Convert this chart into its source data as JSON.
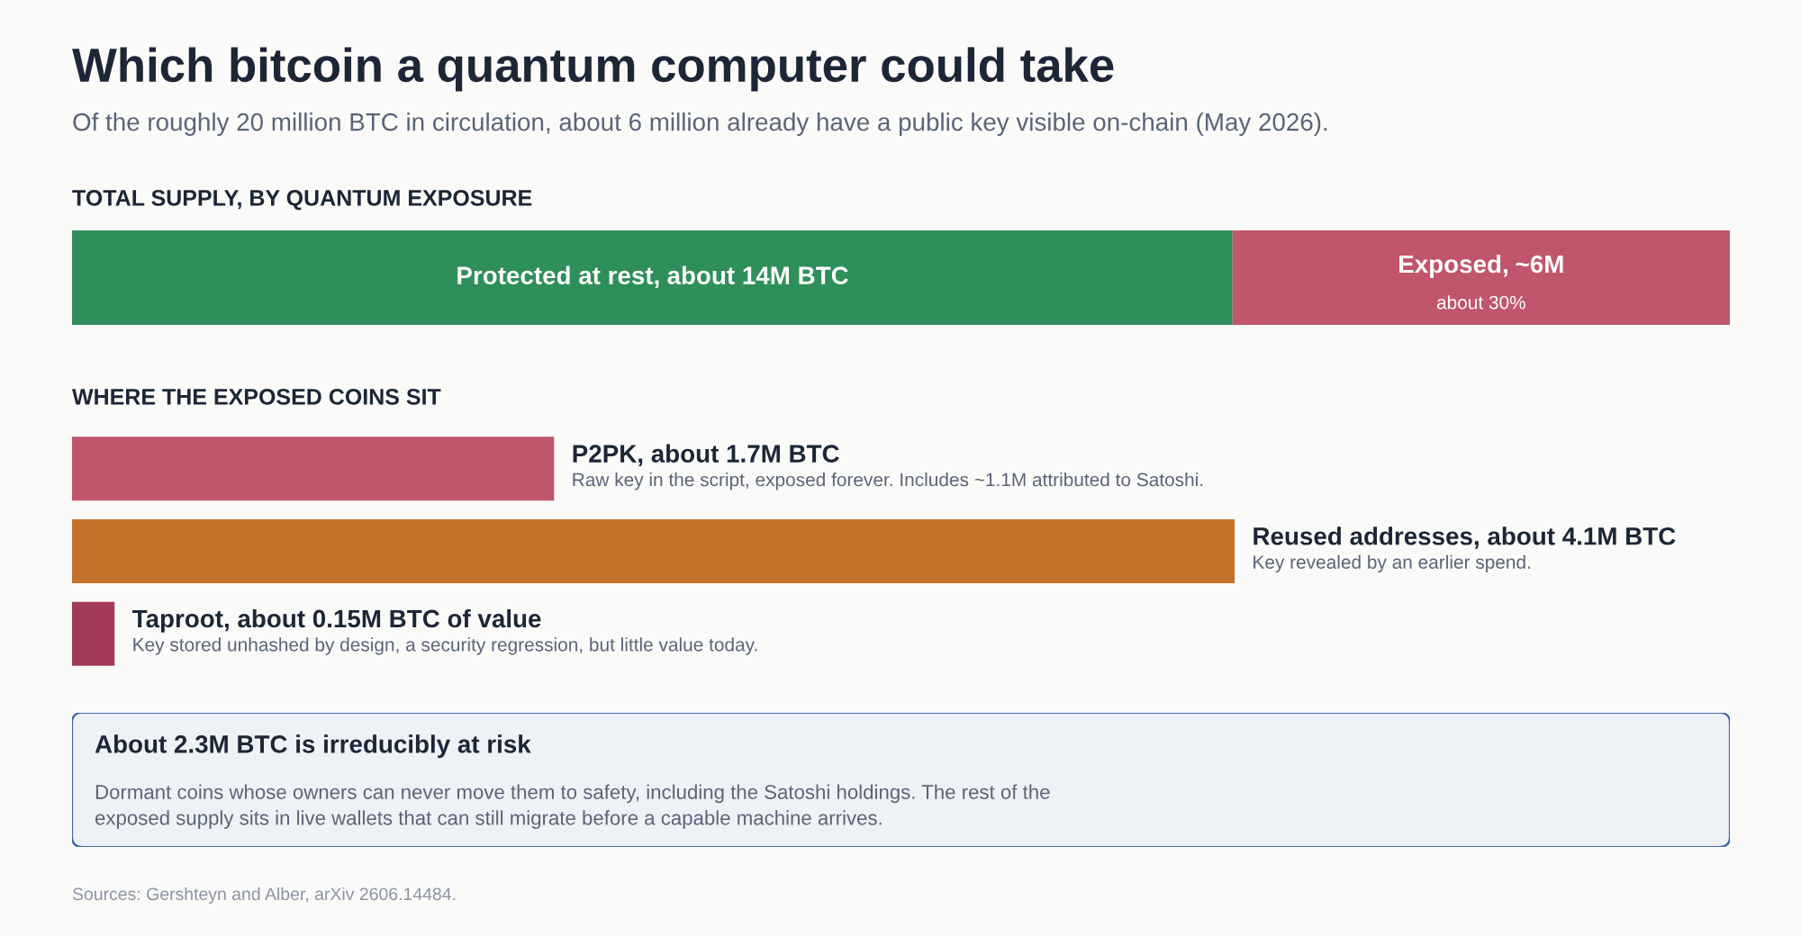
{
  "chart_data": [
    {
      "type": "bar",
      "orientation": "horizontal",
      "stacked": true,
      "title": "Which bitcoin a quantum computer could take",
      "subtitle": "Of the roughly 20 million BTC in circulation, about 6 million already have a public key visible on-chain (May 2026).",
      "annotations": [
        "TOTAL SUPPLY, BY QUANTUM EXPOSURE",
        "about 30%"
      ],
      "categories": [
        null
      ],
      "series": [
        {
          "name": "Protected at rest,",
          "color": "#2e8f5a",
          "values": [
            14
          ],
          "value_labels": [
            "about 14M BTC"
          ]
        },
        {
          "name": "Exposed,",
          "color": "#c0566b",
          "values": [
            6
          ],
          "value_labels": [
            "~6M"
          ]
        }
      ]
    },
    {
      "type": "bar",
      "orientation": "horizontal",
      "title": "WHERE THE EXPOSED COINS SIT",
      "categories": [
        null,
        null,
        null
      ],
      "values": [
        1.7,
        4.1,
        0.15
      ],
      "value_labels": [
        "P2PK, about 1.7M BTC",
        "Reused addresses, about 4.1M BTC",
        "Taproot, about 0.15M BTC of value"
      ],
      "colors": [
        "#c0566b",
        "#c4722b",
        "#a33a57"
      ],
      "annotations": [
        "Raw key in the script, exposed forever. Includes ~1.1M attributed to Satoshi.",
        "Key revealed by an earlier spend.",
        "Key stored unhashed by design, a security regression, but little value today."
      ]
    },
    {
      "type": "other",
      "title": "About 2.3M BTC is irreducibly at risk",
      "annotations": [
        "Dormant coins whose owners can never move them to safety, including the Satoshi holdings. The rest of the\nexposed supply sits in live wallets that can still migrate before a capable machine arrives.",
        "Sources: Gershteyn and Alber, arXiv 2606.14484."
      ]
    }
  ]
}
